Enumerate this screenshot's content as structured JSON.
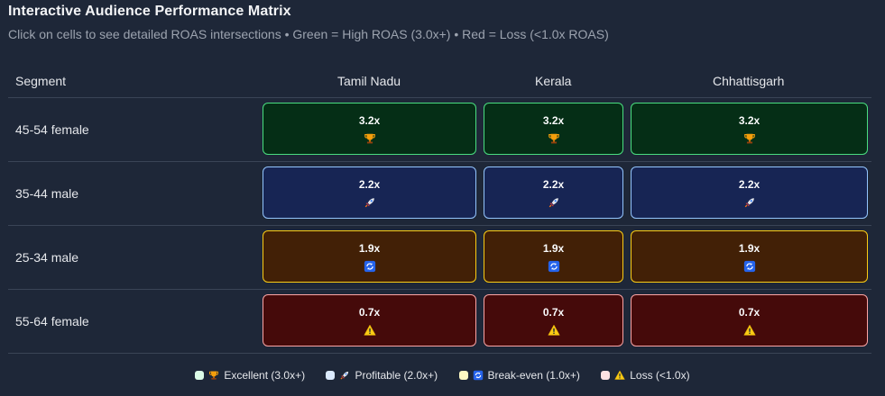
{
  "header": {
    "title": "Interactive Audience Performance Matrix",
    "subtitle": "Click on cells to see detailed ROAS intersections • Green = High ROAS (3.0x+) • Red = Loss (<1.0x ROAS)"
  },
  "table": {
    "segment_header": "Segment",
    "regions": [
      "Tamil Nadu",
      "Kerala",
      "Chhattisgarh"
    ],
    "rows": [
      {
        "segment": "45-54 female",
        "tier": "excellent",
        "icon": "trophy-icon",
        "values": [
          "3.2x",
          "3.2x",
          "3.2x"
        ]
      },
      {
        "segment": "35-44 male",
        "tier": "profitable",
        "icon": "rocket-icon",
        "values": [
          "2.2x",
          "2.2x",
          "2.2x"
        ]
      },
      {
        "segment": "25-34 male",
        "tier": "break-even",
        "icon": "refresh-icon",
        "values": [
          "1.9x",
          "1.9x",
          "1.9x"
        ]
      },
      {
        "segment": "55-64 female",
        "tier": "loss",
        "icon": "warning-icon",
        "values": [
          "0.7x",
          "0.7x",
          "0.7x"
        ]
      }
    ]
  },
  "legend": {
    "excellent": "Excellent (3.0x+)",
    "profitable": "Profitable (2.0x+)",
    "break_even": "Break-even (1.0x+)",
    "loss": "Loss (<1.0x)"
  },
  "colors": {
    "excellent_bg": "#052e16",
    "excellent_border": "#4ade80",
    "profitable_bg": "#172554",
    "profitable_border": "#93c5fd",
    "break_even_bg": "#422006",
    "break_even_border": "#facc15",
    "loss_bg": "#450a0a",
    "loss_border": "#fca5a5"
  }
}
